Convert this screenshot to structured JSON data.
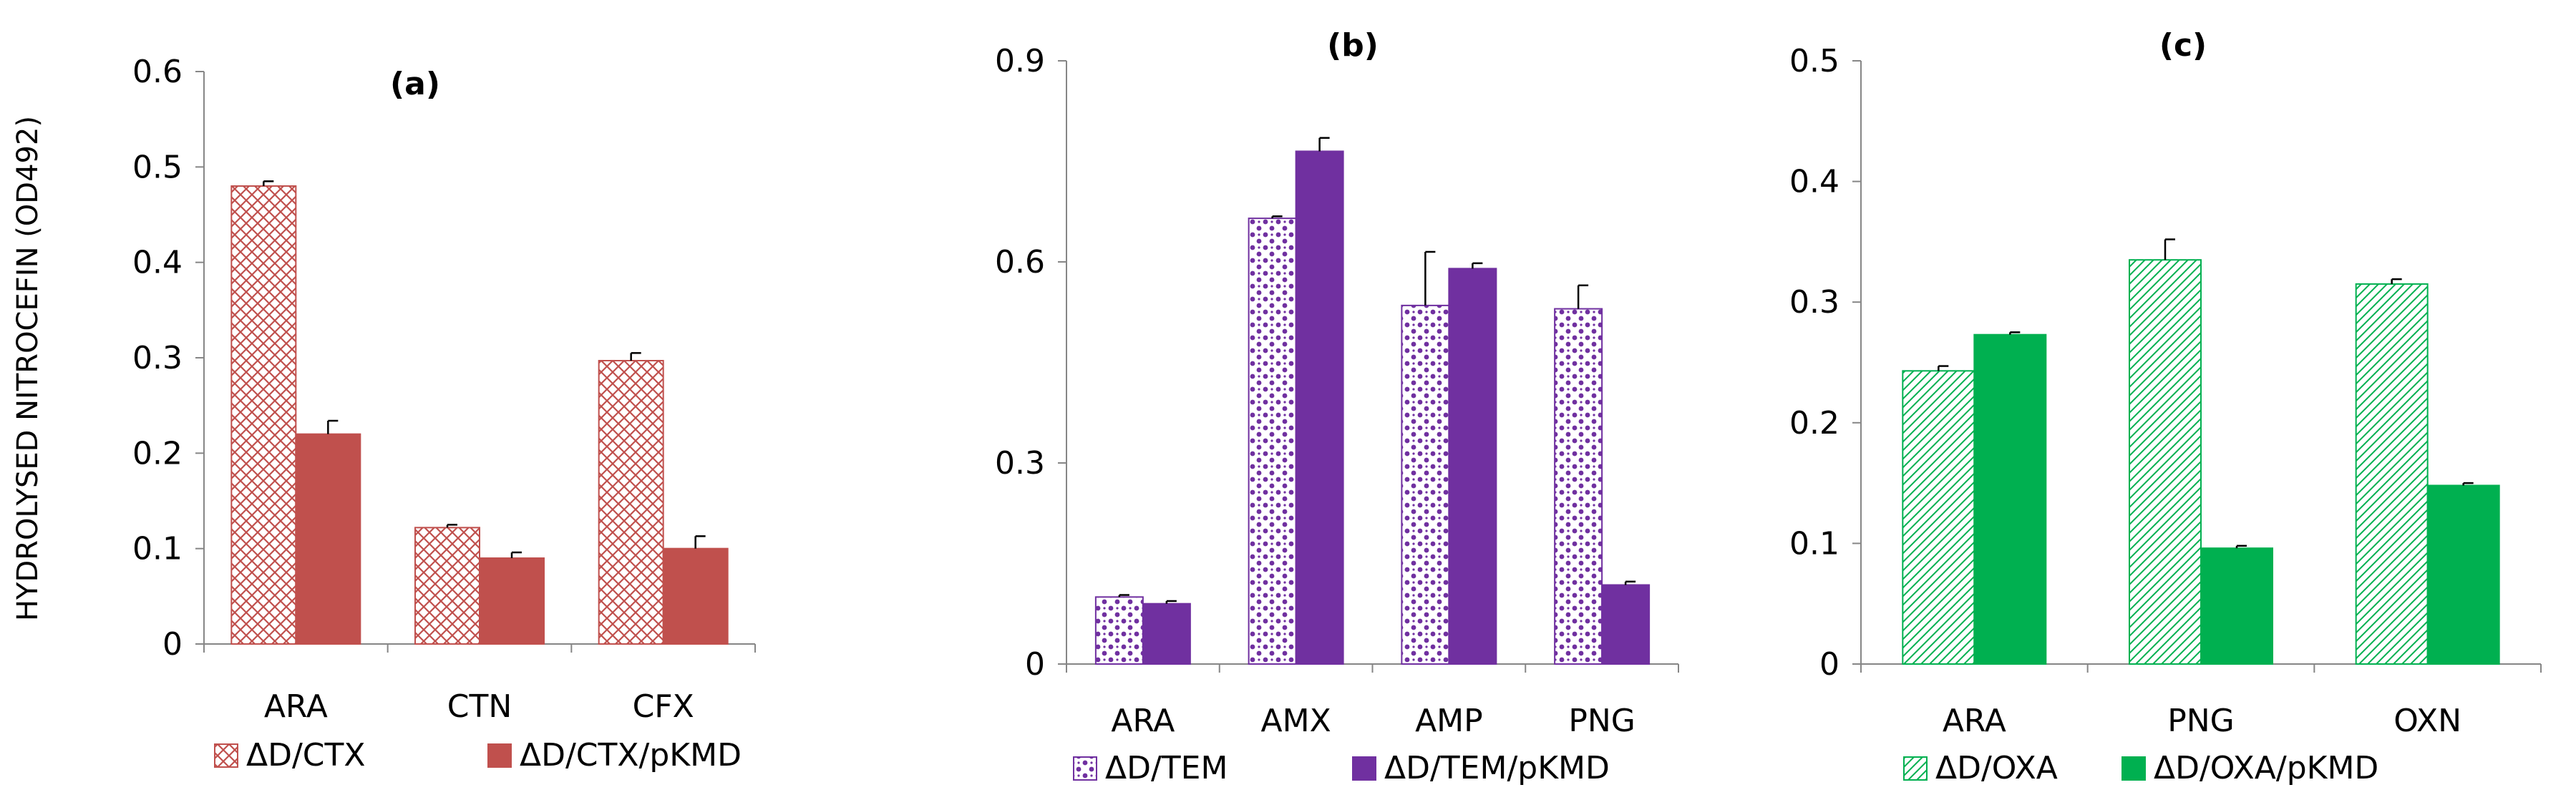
{
  "figure": {
    "ylabel": "HYDROLYSED NITROCEFIN (OD492)"
  },
  "chart_data": [
    {
      "type": "bar",
      "title": "(a)",
      "xlabel": "",
      "ylabel": "HYDROLYSED NITROCEFIN (OD492)",
      "categories": [
        "ARA",
        "CTN",
        "CFX"
      ],
      "ylim": [
        0,
        0.6
      ],
      "yticks": [
        0,
        0.1,
        0.2,
        0.3,
        0.4,
        0.5,
        0.6
      ],
      "ytick_labels": [
        "0",
        "0.1",
        "0.2",
        "0.3",
        "0.4",
        "0.5",
        "0.6"
      ],
      "legend_position": "bottom",
      "series": [
        {
          "name": "ΔD/CTX",
          "values": [
            0.48,
            0.122,
            0.297
          ],
          "errors": [
            0.005,
            0.003,
            0.008
          ],
          "color": "#c0504d",
          "pattern": "crosshatch"
        },
        {
          "name": "ΔD/CTX/pKMD",
          "values": [
            0.22,
            0.09,
            0.1
          ],
          "errors": [
            0.014,
            0.006,
            0.013
          ],
          "color": "#c0504d",
          "pattern": "solid"
        }
      ]
    },
    {
      "type": "bar",
      "title": "(b)",
      "xlabel": "",
      "ylabel": "",
      "categories": [
        "ARA",
        "AMX",
        "AMP",
        "PNG"
      ],
      "ylim": [
        0,
        0.9
      ],
      "yticks": [
        0,
        0.3,
        0.6,
        0.9
      ],
      "ytick_labels": [
        "0",
        "0.3",
        "0.6",
        "0.9"
      ],
      "legend_position": "bottom",
      "series": [
        {
          "name": "ΔD/TEM",
          "values": [
            0.1,
            0.665,
            0.535,
            0.53
          ],
          "errors": [
            0.003,
            0.003,
            0.08,
            0.035
          ],
          "color": "#7030a0",
          "pattern": "dots"
        },
        {
          "name": "ΔD/TEM/pKMD",
          "values": [
            0.09,
            0.765,
            0.59,
            0.118
          ],
          "errors": [
            0.004,
            0.02,
            0.008,
            0.005
          ],
          "color": "#7030a0",
          "pattern": "solid"
        }
      ]
    },
    {
      "type": "bar",
      "title": "(c)",
      "xlabel": "",
      "ylabel": "",
      "categories": [
        "ARA",
        "PNG",
        "OXN"
      ],
      "ylim": [
        0,
        0.5
      ],
      "yticks": [
        0,
        0.1,
        0.2,
        0.3,
        0.4,
        0.5
      ],
      "ytick_labels": [
        "0",
        "0.1",
        "0.2",
        "0.3",
        "0.4",
        "0.5"
      ],
      "legend_position": "bottom",
      "series": [
        {
          "name": "ΔD/OXA",
          "values": [
            0.243,
            0.335,
            0.315
          ],
          "errors": [
            0.004,
            0.017,
            0.004
          ],
          "color": "#00b050",
          "pattern": "diagonal"
        },
        {
          "name": "ΔD/OXA/pKMD",
          "values": [
            0.273,
            0.096,
            0.148
          ],
          "errors": [
            0.002,
            0.002,
            0.002
          ],
          "color": "#00b050",
          "pattern": "solid"
        }
      ]
    }
  ]
}
